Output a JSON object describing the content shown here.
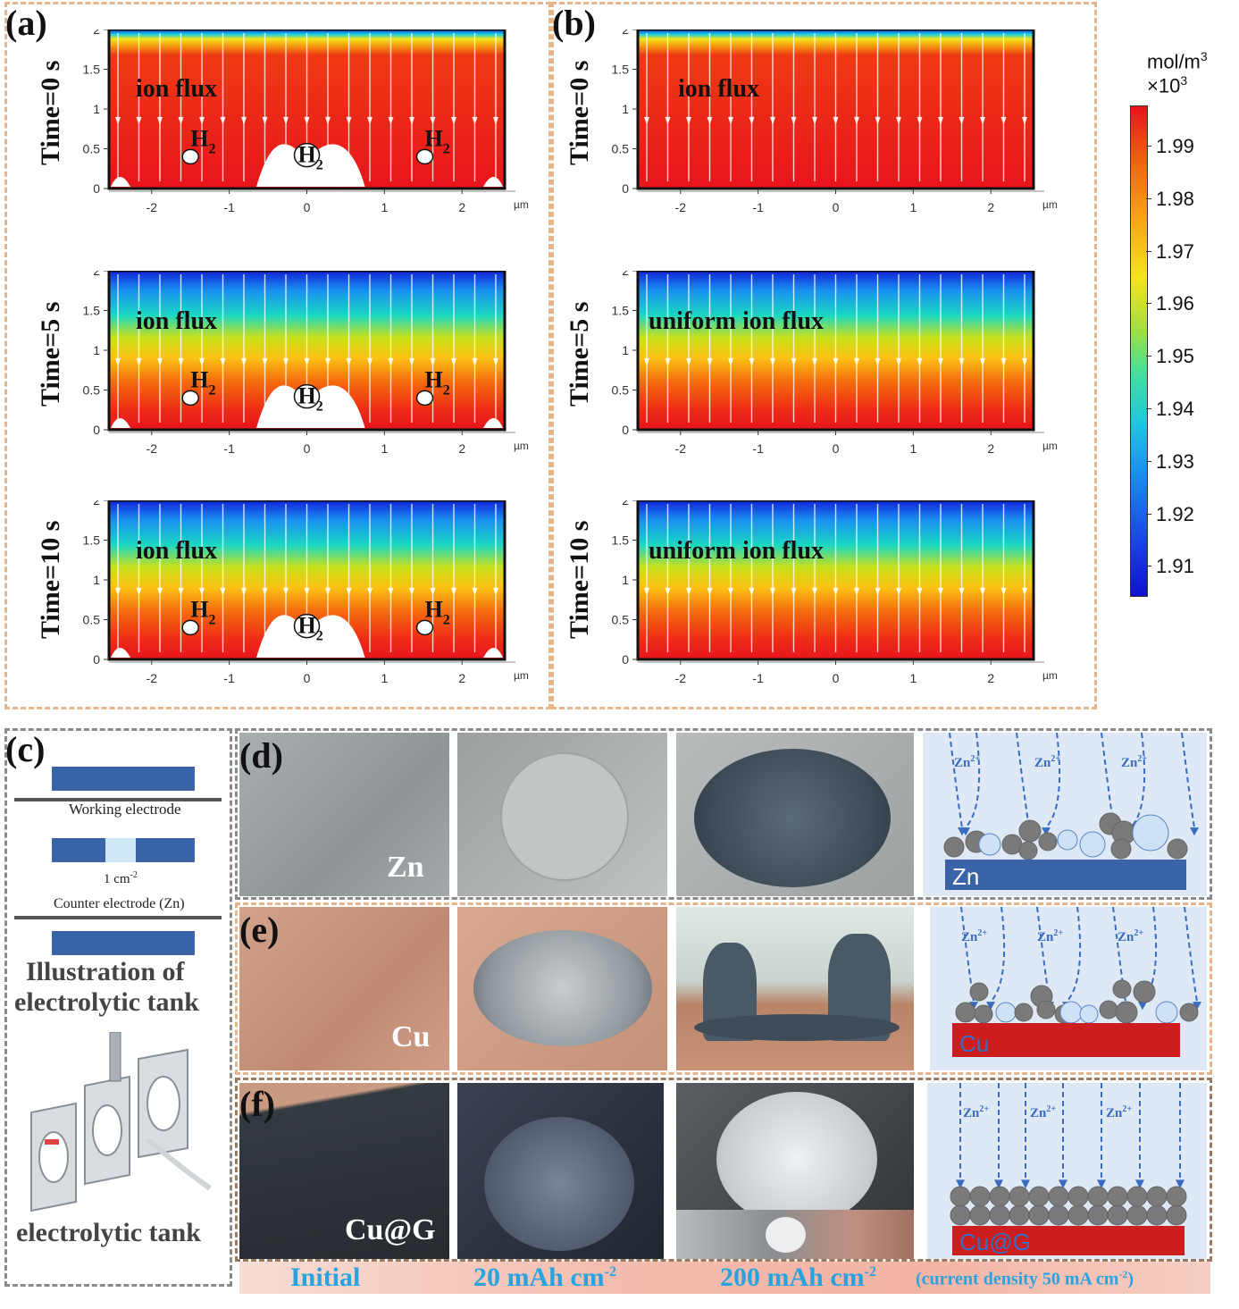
{
  "panels": {
    "a": {
      "letter": "(a)"
    },
    "b": {
      "letter": "(b)"
    },
    "c": {
      "letter": "(c)"
    },
    "d": {
      "letter": "(d)"
    },
    "e": {
      "letter": "(e)"
    },
    "f": {
      "letter": "(f)"
    }
  },
  "simulation": {
    "time_labels": [
      "Time=0 s",
      "Time=5 s",
      "Time=10 s"
    ],
    "y_ticks": [
      "0",
      "0.5",
      "1",
      "1.5",
      "2"
    ],
    "x_ticks": [
      "-2",
      "-1",
      "0",
      "1",
      "2"
    ],
    "x_unit": "µm",
    "a_flux_label": "ion flux",
    "b_flux_labels": [
      "ion flux",
      "uniform ion flux",
      "uniform ion flux"
    ],
    "h2_label": "H",
    "h2_sub": "2"
  },
  "colorbar": {
    "unit_line1": "mol/m",
    "unit_sup": "3",
    "unit_line2": "×10",
    "unit_sup2": "3",
    "ticks": [
      "1.99",
      "1.98",
      "1.97",
      "1.96",
      "1.95",
      "1.94",
      "1.93",
      "1.92",
      "1.91"
    ],
    "colors": [
      "#e8141c",
      "#f46a0e",
      "#fbc114",
      "#c9e01a",
      "#5fe06e",
      "#1ad8c4",
      "#1a9ef0",
      "#1a4fe8",
      "#1020d8"
    ]
  },
  "c_panel": {
    "working_electrode": "Working electrode",
    "area": "1 cm",
    "area_sup": "-2",
    "counter_electrode": "Counter electrode (Zn)",
    "illustration_line1": "Illustration of",
    "illustration_line2": "electrolytic tank",
    "tank_caption": "electrolytic tank"
  },
  "photos": {
    "d_label": "Zn",
    "e_label": "Cu",
    "f_label": "Cu@G"
  },
  "schematics": {
    "ion": "Zn",
    "ion_sup": "2+",
    "d_substrate": "Zn",
    "e_substrate": "Cu",
    "f_substrate": "Cu@G"
  },
  "bottom_labels": {
    "initial": "Initial",
    "cap20": "20 mAh cm",
    "cap20_sup": "-2",
    "cap200": "200 mAh cm",
    "cap200_sup": "-2",
    "current": "(current density 50 mA cm",
    "current_sup": "-2",
    "current_end": ")"
  }
}
